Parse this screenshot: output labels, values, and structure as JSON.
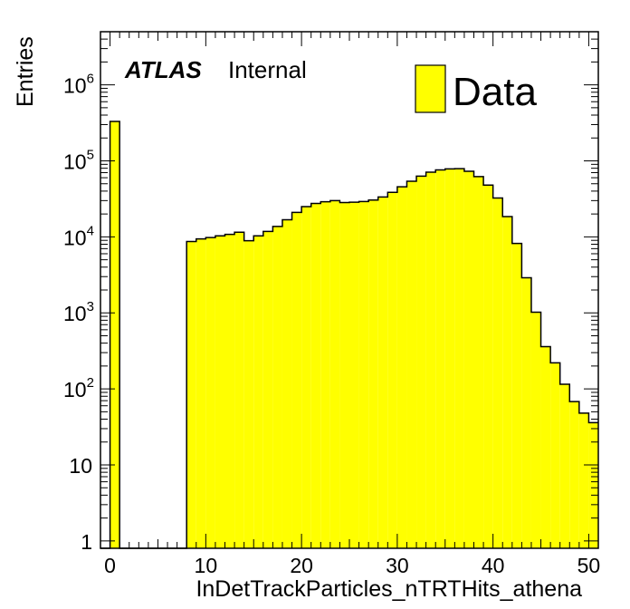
{
  "chart_data": {
    "type": "bar",
    "xlabel": "InDetTrackParticles_nTRTHits_athena",
    "ylabel": "Entries",
    "xlim": [
      -1,
      51
    ],
    "ylim": [
      0.8,
      5000000
    ],
    "y_scale": "log",
    "x_ticks": [
      "0",
      "10",
      "20",
      "30",
      "40",
      "50"
    ],
    "y_ticks": [
      {
        "value": 1,
        "base": "1",
        "exp": ""
      },
      {
        "value": 10,
        "base": "10",
        "exp": ""
      },
      {
        "value": 100,
        "base": "10",
        "exp": "2"
      },
      {
        "value": 1000,
        "base": "10",
        "exp": "3"
      },
      {
        "value": 10000,
        "base": "10",
        "exp": "4"
      },
      {
        "value": 100000,
        "base": "10",
        "exp": "5"
      },
      {
        "value": 1000000,
        "base": "10",
        "exp": "6"
      }
    ],
    "bin_edges_start": -1,
    "bin_width": 1,
    "values": [
      0,
      330000,
      0,
      0,
      0,
      0,
      0,
      0,
      0,
      8700,
      9400,
      9800,
      10300,
      10800,
      11500,
      8900,
      10300,
      11800,
      13700,
      16800,
      21000,
      25000,
      27500,
      29000,
      30000,
      28300,
      28600,
      29200,
      30500,
      33500,
      38500,
      45500,
      54000,
      63000,
      71000,
      76000,
      78500,
      79000,
      73000,
      62000,
      48000,
      32500,
      18500,
      8200,
      2900,
      1020,
      360,
      220,
      115,
      68,
      48,
      36
    ],
    "series": [
      {
        "name": "Data",
        "color": "#ffff00"
      }
    ],
    "annotations": {
      "label_bold": "ATLAS",
      "label_plain": "Internal"
    },
    "legend_position": "top-right",
    "grid": false
  }
}
